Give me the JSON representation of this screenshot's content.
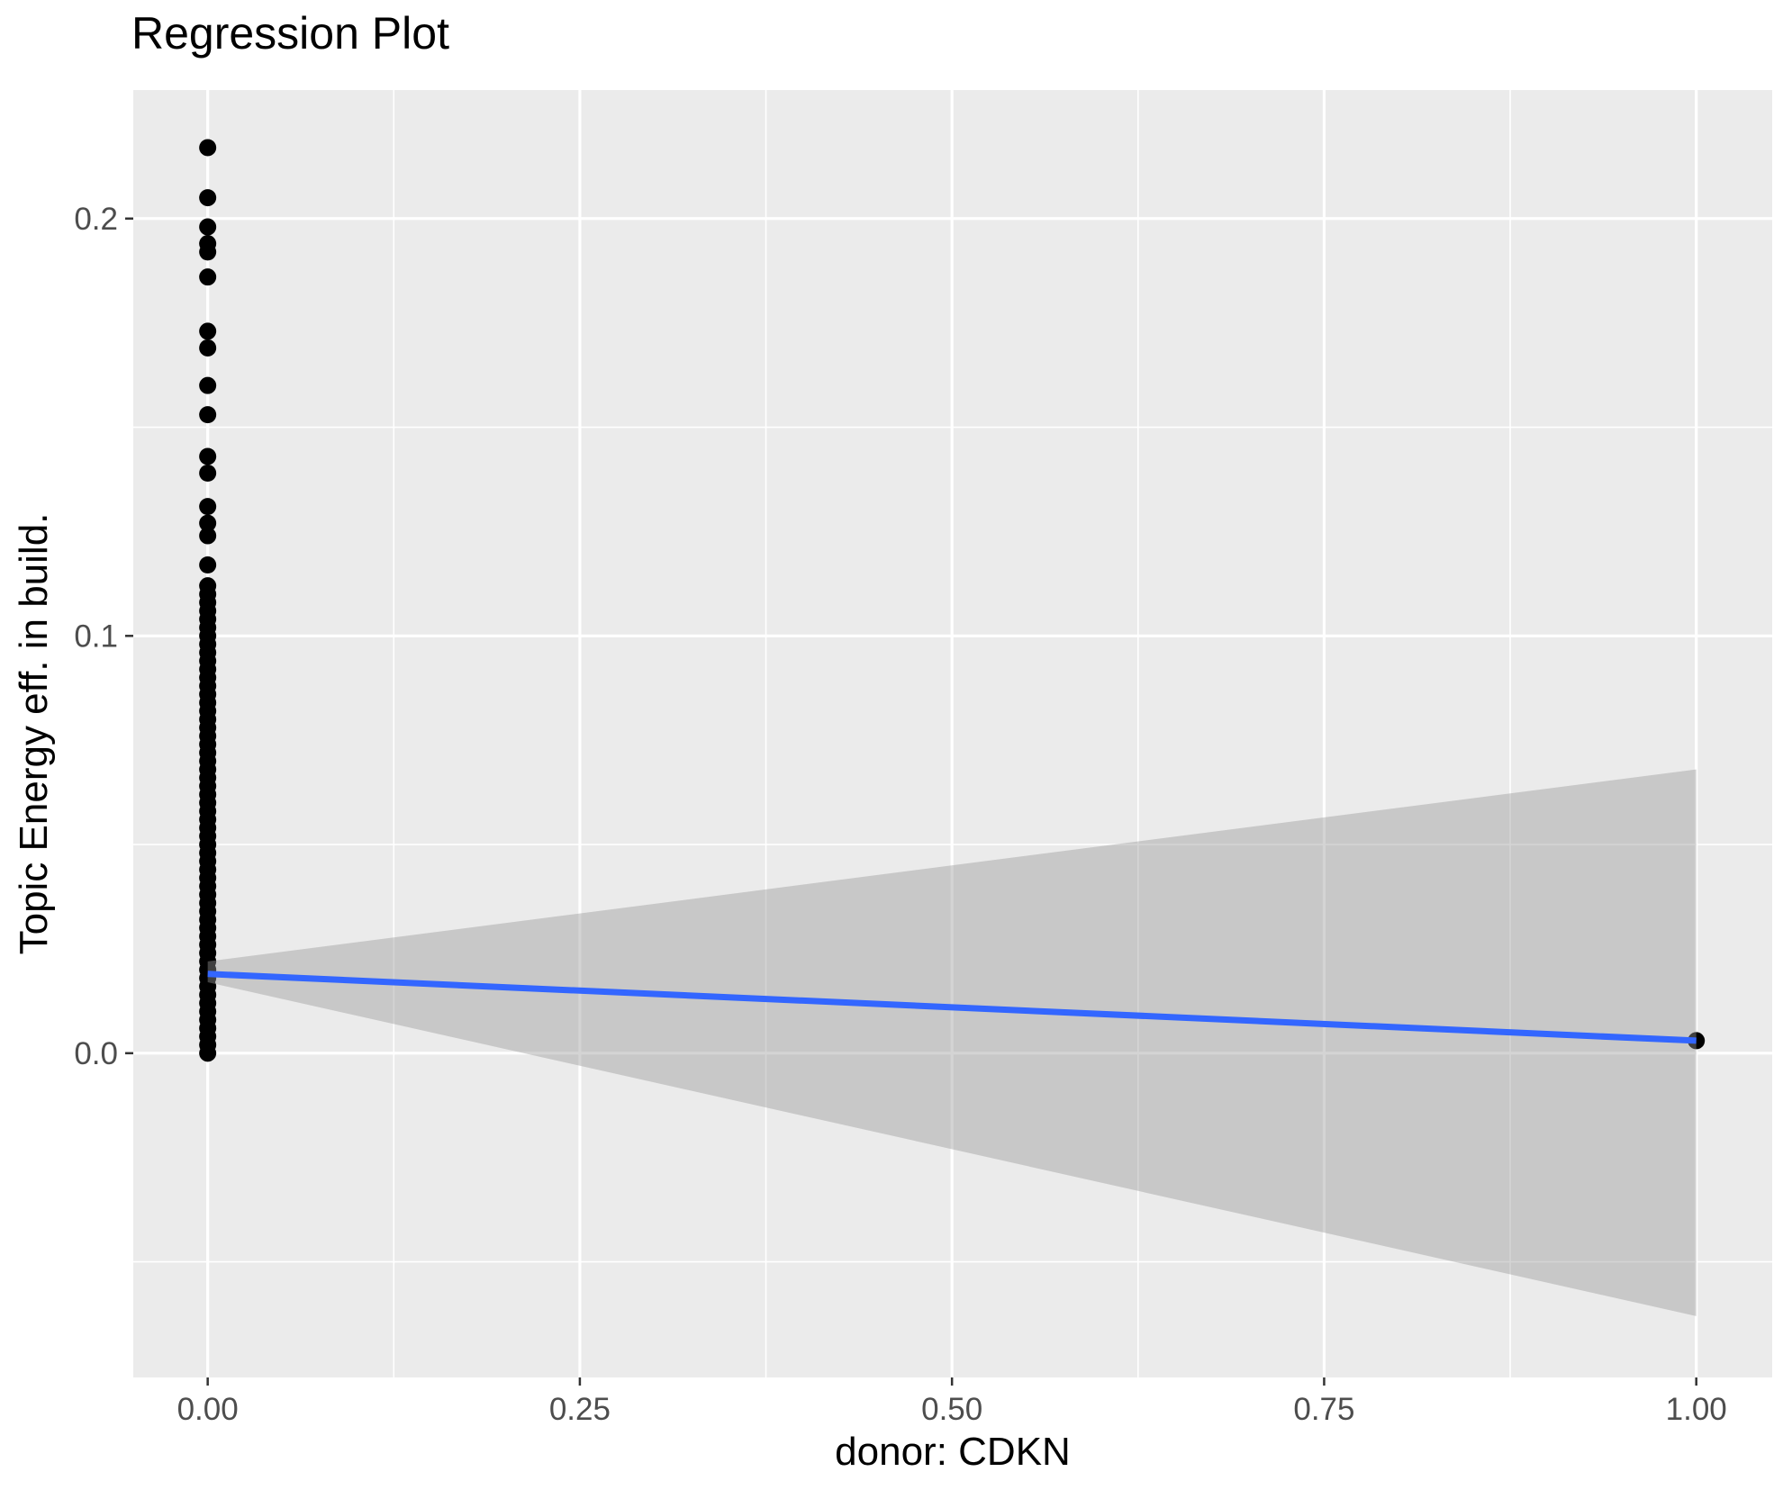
{
  "chart_data": {
    "type": "scatter",
    "title": "Regression Plot",
    "xlabel": "donor: CDKN",
    "ylabel": "Topic Energy eff. in build.",
    "xlim": [
      -0.05,
      1.051
    ],
    "ylim": [
      -0.0777,
      0.2308
    ],
    "grid": "on",
    "x_ticks": {
      "values": [
        0,
        0.25,
        0.5,
        0.75,
        1.0
      ],
      "labels": [
        "0.00",
        "0.25",
        "0.50",
        "0.75",
        "1.00"
      ]
    },
    "y_ticks": {
      "values": [
        0,
        0.1,
        0.2
      ],
      "labels": [
        "0.0",
        "0.1",
        "0.2"
      ]
    },
    "x_minor_breaks": [
      0.125,
      0.375,
      0.625,
      0.875
    ],
    "y_minor_breaks": [
      -0.05,
      0.05,
      0.15
    ],
    "series": [
      {
        "name": "observations-x0",
        "x": 0,
        "y": [
          0.0,
          0.002,
          0.004,
          0.006,
          0.008,
          0.01,
          0.012,
          0.014,
          0.016,
          0.018,
          0.02,
          0.022,
          0.024,
          0.026,
          0.028,
          0.03,
          0.032,
          0.034,
          0.036,
          0.038,
          0.04,
          0.042,
          0.044,
          0.046,
          0.048,
          0.05,
          0.052,
          0.054,
          0.056,
          0.058,
          0.06,
          0.062,
          0.064,
          0.066,
          0.068,
          0.07,
          0.072,
          0.074,
          0.076,
          0.078,
          0.08,
          0.082,
          0.084,
          0.086,
          0.088,
          0.09,
          0.092,
          0.094,
          0.096,
          0.098,
          0.1,
          0.102,
          0.104,
          0.106,
          0.108,
          0.11,
          0.112,
          0.117,
          0.124,
          0.127,
          0.131,
          0.139,
          0.143,
          0.153,
          0.16,
          0.169,
          0.173,
          0.186,
          0.192,
          0.194,
          0.198,
          0.205,
          0.217
        ]
      },
      {
        "name": "observations-x1",
        "x": 1,
        "y": [
          0.003
        ]
      }
    ],
    "regression_line": {
      "x": [
        0,
        1
      ],
      "y": [
        0.019,
        0.003
      ]
    },
    "confidence_band": {
      "x": [
        0,
        1
      ],
      "upper": [
        0.022,
        0.068
      ],
      "lower": [
        0.017,
        -0.063
      ]
    },
    "colors": {
      "point": "#000000",
      "line": "#3366FF",
      "band": "rgba(153,153,153,0.42)",
      "panel_background": "#EBEBEB",
      "gridline": "#FFFFFF",
      "tick_mark": "#333333",
      "tick_label": "#4D4D4D",
      "title_text": "#000000"
    }
  }
}
